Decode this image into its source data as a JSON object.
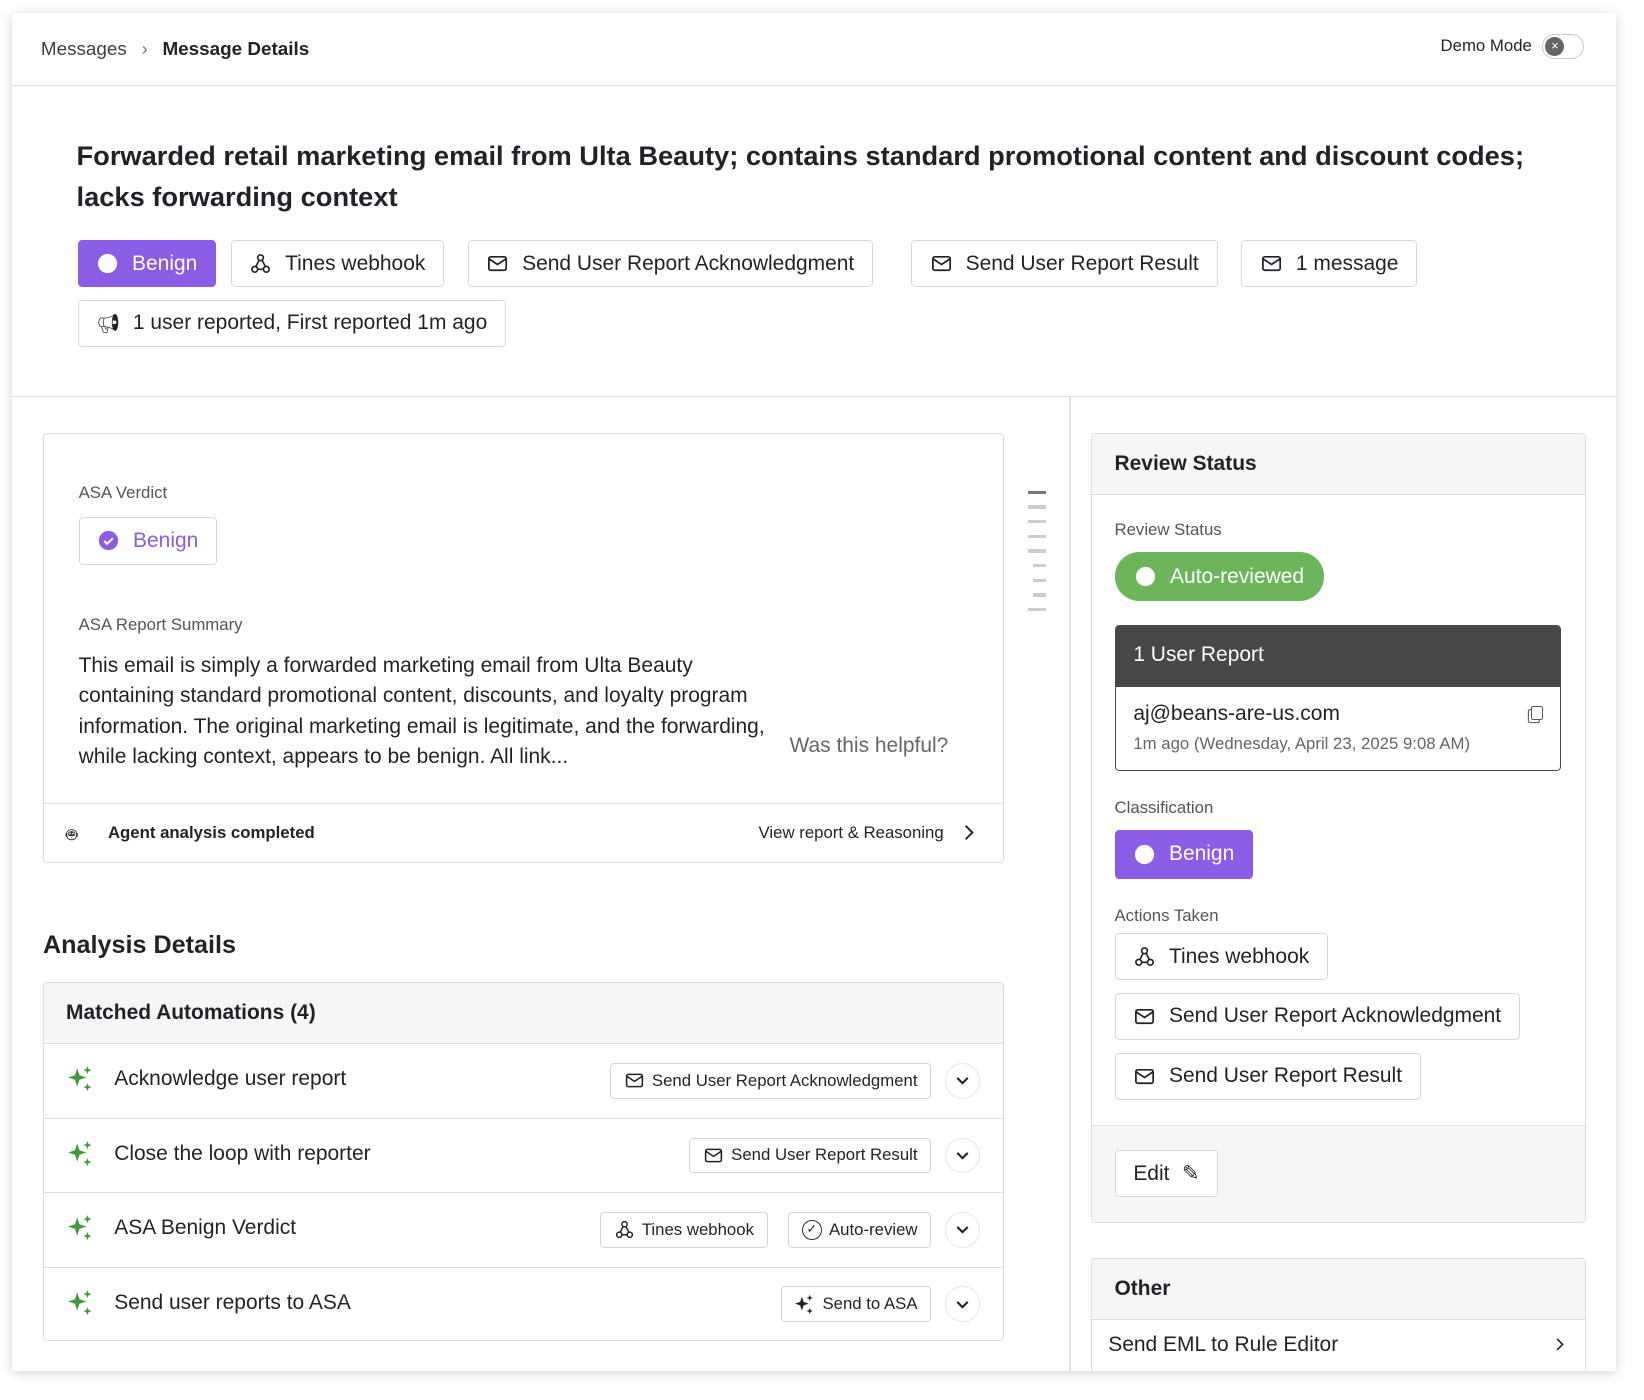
{
  "breadcrumb": {
    "parent": "Messages",
    "current": "Message Details"
  },
  "demo_mode": {
    "label": "Demo Mode",
    "enabled": false
  },
  "title": "Forwarded retail marketing email from Ulta Beauty; contains standard promotional content and discount codes; lacks forwarding context",
  "chips": {
    "verdict": "Benign",
    "tines": "Tines webhook",
    "ack": "Send User Report Acknowledgment",
    "result": "Send User Report Result",
    "messages": "1 message",
    "reported": "1 user reported, First reported 1m ago"
  },
  "asa": {
    "verdict_label": "ASA Verdict",
    "verdict": "Benign",
    "summary_label": "ASA Report Summary",
    "summary": "This email is simply a forwarded marketing email from Ulta Beauty containing standard promotional content, discounts, and loyalty program information. The original marketing email is legitimate, and the forwarding, while lacking context, appears to be benign. All link...",
    "helpful": "Was this helpful?",
    "status": "Agent analysis completed",
    "view_link": "View report & Reasoning"
  },
  "analysis": {
    "heading": "Analysis Details",
    "table_title": "Matched Automations (4)",
    "rows": [
      {
        "name": "Acknowledge user report",
        "actions": [
          "Send User Report Acknowledgment"
        ]
      },
      {
        "name": "Close the loop with reporter",
        "actions": [
          "Send User Report Result"
        ]
      },
      {
        "name": "ASA Benign Verdict",
        "actions": [
          "Tines webhook",
          "Auto-review"
        ]
      },
      {
        "name": "Send user reports to ASA",
        "actions": [
          "Send to ASA"
        ]
      }
    ]
  },
  "review": {
    "title": "Review Status",
    "status_label": "Review Status",
    "status": "Auto-reviewed",
    "user_report": {
      "title": "1 User Report",
      "email": "aj@beans-are-us.com",
      "time": "1m ago (Wednesday, April 23, 2025 9:08 AM)"
    },
    "classification_label": "Classification",
    "classification": "Benign",
    "actions_label": "Actions Taken",
    "actions": [
      "Tines webhook",
      "Send User Report Acknowledgment",
      "Send User Report Result"
    ],
    "edit": "Edit"
  },
  "other": {
    "title": "Other",
    "item": "Send EML to Rule Editor"
  },
  "colors": {
    "benign": "#8b5ce6",
    "auto_reviewed": "#6db55a",
    "sparkle": "#3f9a3a",
    "report_header": "#474747"
  }
}
